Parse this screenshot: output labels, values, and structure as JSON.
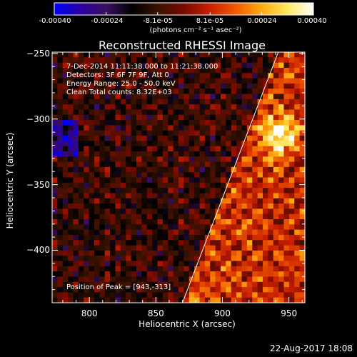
{
  "colorbar": {
    "ticks": [
      "-0.00040",
      "-0.00024",
      "-8.1e-05",
      "8.1e-05",
      "0.00024",
      "0.00040"
    ],
    "units_label": "(photons cm⁻² s⁻¹ asec⁻²)"
  },
  "chart_data": {
    "type": "heatmap",
    "title": "Reconstructed RHESSI Image",
    "xlabel": "Heliocentric X (arcsec)",
    "ylabel": "Heliocentric Y (arcsec)",
    "xlim": [
      772,
      962
    ],
    "ylim": [
      -440,
      -249
    ],
    "x_ticks": [
      800,
      850,
      900,
      950
    ],
    "y_ticks": [
      -250,
      -300,
      -350,
      -400
    ],
    "x_tick_labels": [
      "800",
      "850",
      "900",
      "950"
    ],
    "y_tick_labels": [
      "−250",
      "−300",
      "−350",
      "−400"
    ],
    "colorbar_range": [
      -0.0004,
      0.0004
    ],
    "colormap": [
      "#0000ff",
      "#2a00a0",
      "#3a1060",
      "#000000",
      "#3a1200",
      "#7a0a00",
      "#c82000",
      "#f05a00",
      "#ffaa10",
      "#ffe860",
      "#ffffff"
    ],
    "annotations": [
      "7-Dec-2014 11:11:38.000 to 11:21:38.000",
      "Detectors: 3F 6F 7F 9F, Att 0",
      "Energy Range: 25.0 - 50.0 keV",
      "Clean     Total counts: 8.32E+03"
    ],
    "peak_label": "Position of Peak = [943,-313]",
    "peak": [
      943,
      -313
    ],
    "limb_line": [
      [
        870,
        -440
      ],
      [
        942,
        -249
      ]
    ],
    "grid": false
  },
  "footer": {
    "date": "22-Aug-2017 18:08"
  }
}
